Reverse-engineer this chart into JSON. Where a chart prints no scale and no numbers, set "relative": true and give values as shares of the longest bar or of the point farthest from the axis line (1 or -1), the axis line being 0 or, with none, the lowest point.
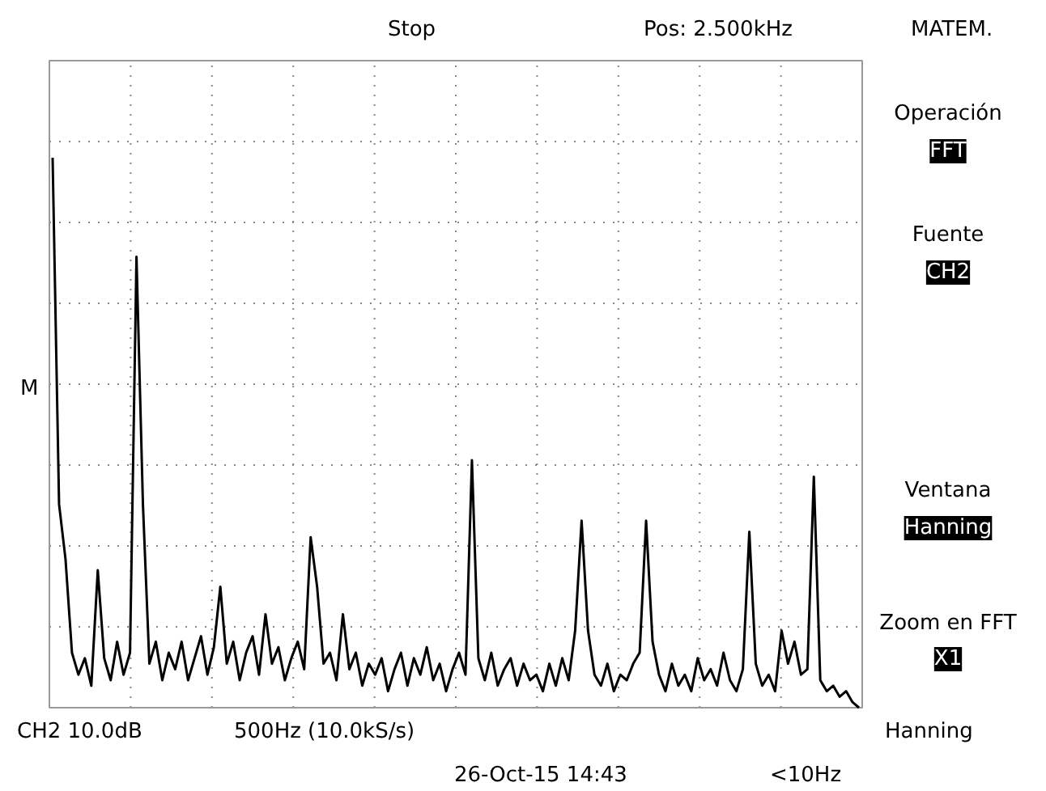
{
  "chart_data": {
    "type": "line",
    "relative": true,
    "grid": true,
    "categories": [
      null,
      null,
      null,
      null,
      null,
      null,
      null,
      null,
      null,
      null,
      null,
      null,
      null,
      null,
      null,
      null,
      null,
      null,
      null,
      null,
      null,
      null,
      null,
      null,
      null,
      null,
      null,
      null,
      null,
      null,
      null,
      null,
      null,
      null,
      null,
      null,
      null,
      null,
      null,
      null,
      null,
      null,
      null,
      null,
      null,
      null,
      null,
      null,
      null,
      null,
      null,
      null,
      null,
      null,
      null,
      null,
      null,
      null,
      null,
      null,
      null,
      null,
      null,
      null,
      null,
      null,
      null,
      null,
      null,
      null,
      null,
      null,
      null,
      null,
      null,
      null,
      null,
      null,
      null,
      null,
      null,
      null,
      null,
      null,
      null,
      null,
      null,
      null,
      null,
      null,
      null,
      null,
      null,
      null,
      null,
      null,
      null,
      null,
      null,
      null,
      null,
      null,
      null,
      null,
      null,
      null,
      null,
      null,
      null,
      null,
      null,
      null,
      null,
      null,
      null,
      null,
      null,
      null,
      null,
      null,
      null,
      null,
      null,
      null,
      null,
      null
    ],
    "series": [
      {
        "color": "#000000",
        "values": [
          1.0,
          0.37,
          0.27,
          0.1,
          0.06,
          0.09,
          0.04,
          0.25,
          0.09,
          0.05,
          0.12,
          0.06,
          0.1,
          0.82,
          0.37,
          0.08,
          0.12,
          0.05,
          0.1,
          0.07,
          0.12,
          0.05,
          0.09,
          0.13,
          0.06,
          0.11,
          0.22,
          0.08,
          0.12,
          0.05,
          0.1,
          0.13,
          0.06,
          0.17,
          0.08,
          0.11,
          0.05,
          0.09,
          0.12,
          0.07,
          0.31,
          0.22,
          0.08,
          0.1,
          0.05,
          0.17,
          0.07,
          0.1,
          0.04,
          0.08,
          0.06,
          0.09,
          0.03,
          0.07,
          0.1,
          0.04,
          0.09,
          0.06,
          0.11,
          0.05,
          0.08,
          0.03,
          0.07,
          0.1,
          0.06,
          0.45,
          0.09,
          0.05,
          0.1,
          0.04,
          0.07,
          0.09,
          0.04,
          0.08,
          0.05,
          0.06,
          0.03,
          0.08,
          0.04,
          0.09,
          0.05,
          0.14,
          0.34,
          0.14,
          0.06,
          0.04,
          0.08,
          0.03,
          0.06,
          0.05,
          0.08,
          0.1,
          0.34,
          0.12,
          0.06,
          0.03,
          0.08,
          0.04,
          0.06,
          0.03,
          0.09,
          0.05,
          0.07,
          0.04,
          0.1,
          0.05,
          0.03,
          0.07,
          0.32,
          0.08,
          0.04,
          0.06,
          0.03,
          0.14,
          0.08,
          0.12,
          0.06,
          0.07,
          0.42,
          0.05,
          0.03,
          0.04,
          0.02,
          0.03,
          0.01,
          0.0
        ]
      }
    ],
    "annotations": [
      "Stop",
      "Pos: 2.500kHz",
      "MATEM.",
      "Operación",
      "FFT",
      "Fuente",
      "CH2",
      "Ventana",
      "Hanning",
      "Zoom en FFT",
      "X1",
      "CH2 10.0dB",
      "500Hz (10.0kS/s)",
      "Hanning",
      "26-Oct-15 14:43",
      "<10Hz",
      "M"
    ]
  }
}
